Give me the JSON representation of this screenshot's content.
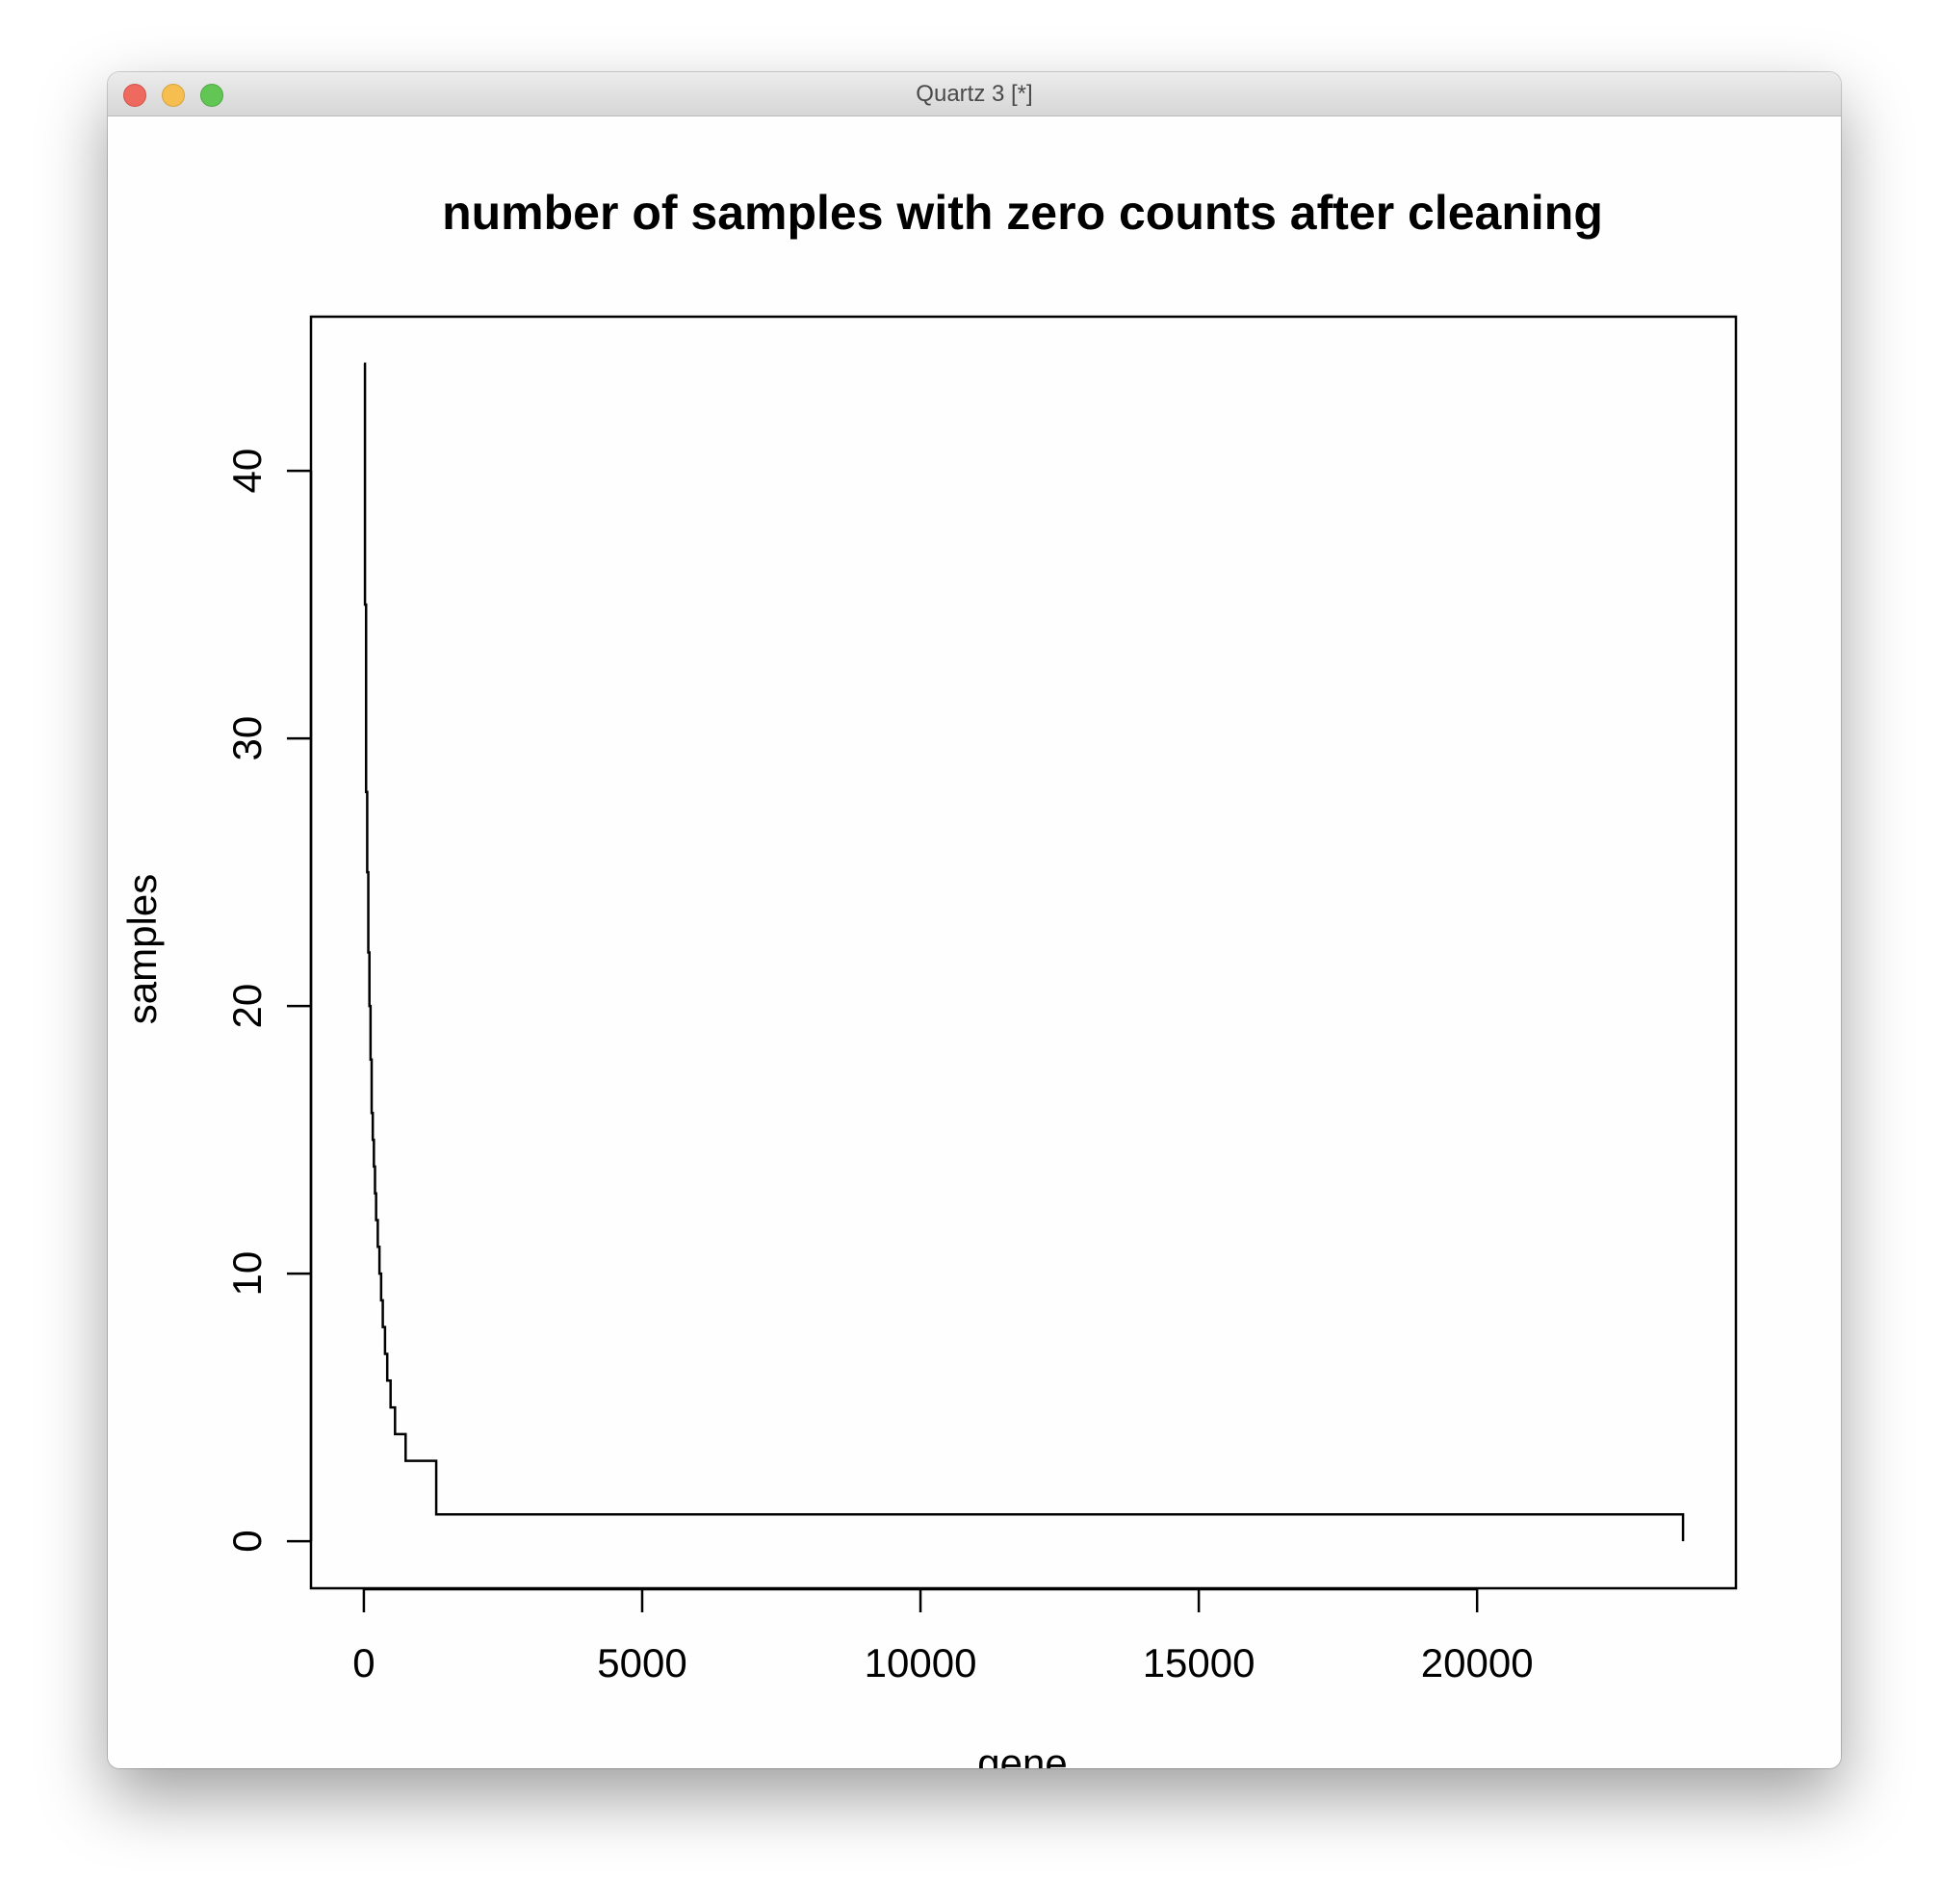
{
  "window": {
    "title": "Quartz 3 [*]",
    "buttons": [
      "close-button",
      "minimize-button",
      "zoom-button"
    ]
  },
  "chart_data": {
    "type": "line",
    "title": "number of samples with zero counts after cleaning",
    "xlabel": "gene",
    "ylabel": "samples",
    "xlim": [
      -950,
      24650
    ],
    "ylim": [
      -1.76,
      45.76
    ],
    "x_ticks": [
      0,
      5000,
      10000,
      15000,
      20000
    ],
    "y_ticks": [
      0,
      10,
      20,
      30,
      40
    ],
    "x_tick_labels": [
      "0",
      "5000",
      "10000",
      "15000",
      "20000"
    ],
    "y_tick_labels": [
      "0",
      "10",
      "20",
      "30",
      "40"
    ],
    "grid": false,
    "step": true,
    "series": [
      {
        "x": [
          1,
          20,
          40,
          60,
          80,
          100,
          120,
          140,
          160,
          180,
          200,
          220,
          250,
          280,
          310,
          340,
          380,
          420,
          480,
          560,
          750,
          1300,
          23700
        ],
        "y": [
          44,
          35,
          28,
          25,
          22,
          20,
          18,
          16,
          15,
          14,
          13,
          12,
          11,
          10,
          9,
          8,
          7,
          6,
          5,
          4,
          3,
          1,
          0
        ]
      }
    ]
  }
}
